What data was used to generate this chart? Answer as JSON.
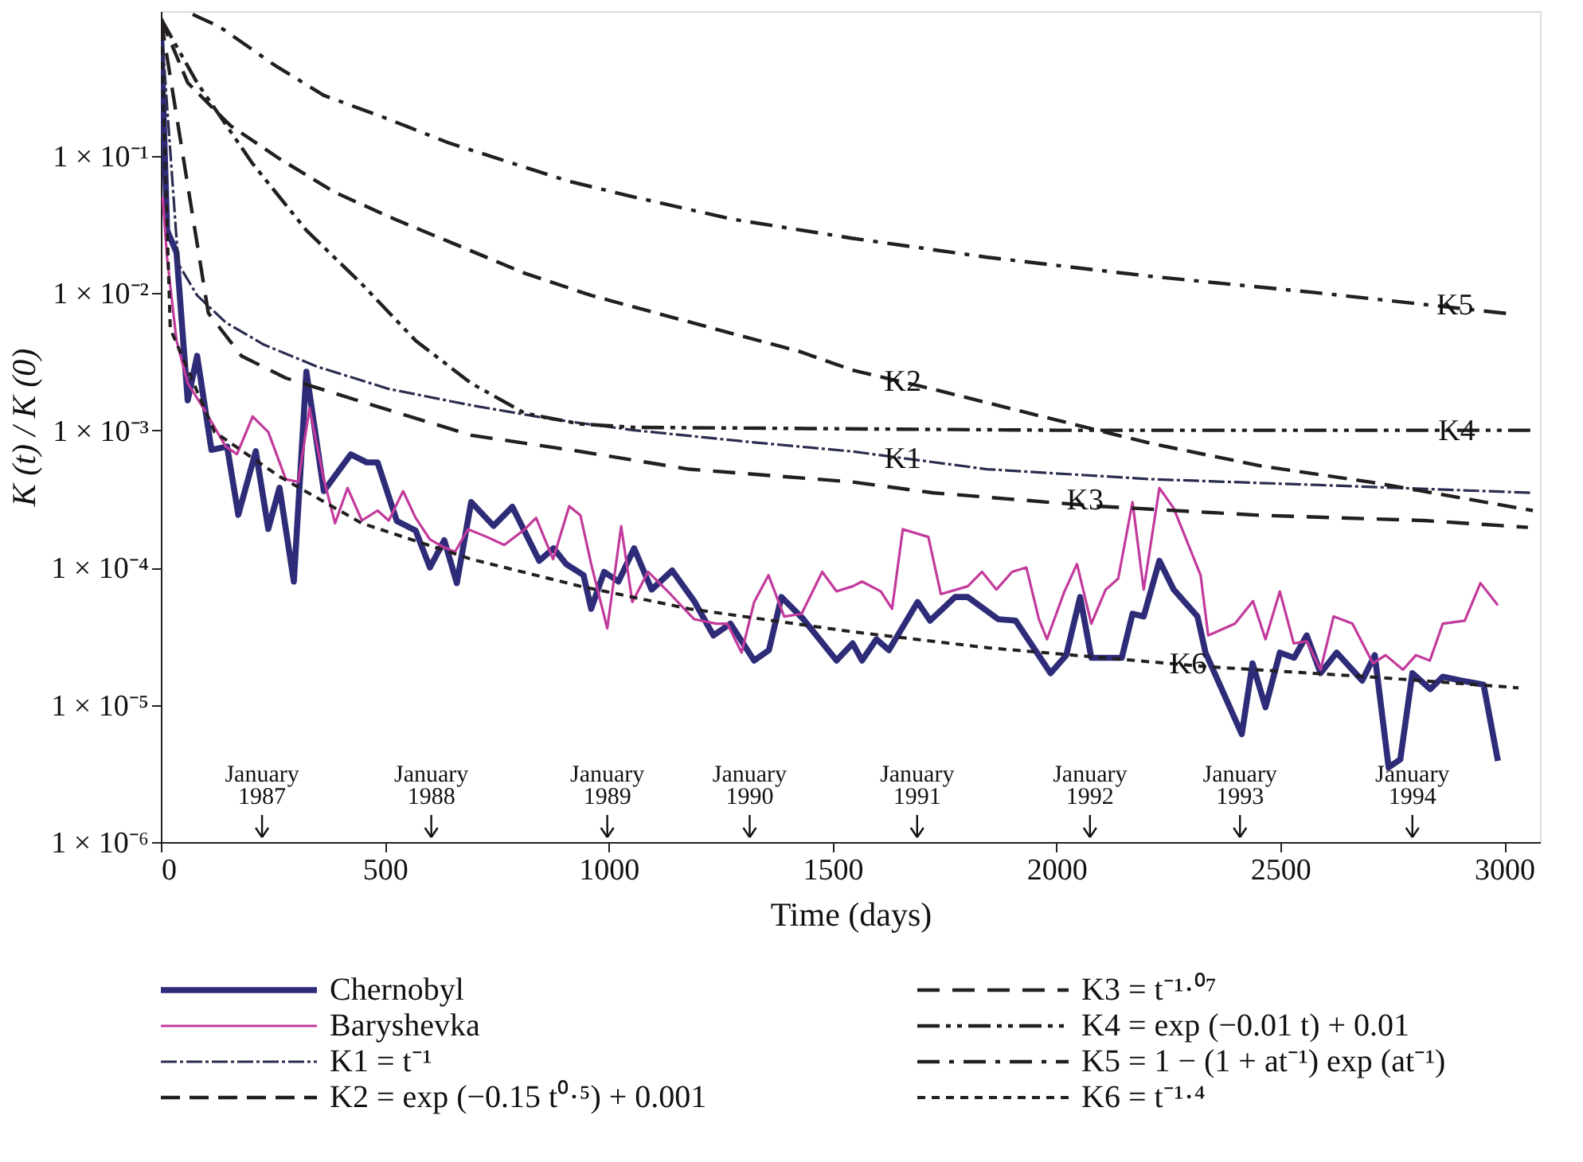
{
  "chart_data": {
    "type": "line",
    "xlabel": "Time (days)",
    "ylabel": "K (t) / K (0)",
    "xlim": [
      0,
      3080
    ],
    "xticks": [
      0,
      500,
      1000,
      1500,
      2000,
      2500,
      3000
    ],
    "ylim": [
      1e-06,
      1.13
    ],
    "log": true,
    "yticks": [
      {
        "value": 1e-06,
        "label": "1 × 10⁻⁶"
      },
      {
        "value": 1e-05,
        "label": "1 × 10⁻⁵"
      },
      {
        "value": 0.0001,
        "label": "1 × 10⁻⁴"
      },
      {
        "value": 0.001,
        "label": "1 × 10⁻³"
      },
      {
        "value": 0.01,
        "label": "1 × 10⁻²"
      },
      {
        "value": 0.1,
        "label": "1 × 10⁻¹"
      }
    ],
    "grid": false,
    "legend": "bottom",
    "series": [
      {
        "name": "Chernobyl",
        "color": "#2e2c78",
        "line_style": "solid",
        "x": [
          0,
          14,
          35,
          60,
          81,
          113,
          148,
          173,
          212,
          240,
          265,
          297,
          325,
          364,
          424,
          460,
          484,
          527,
          569,
          601,
          633,
          661,
          693,
          743,
          785,
          845,
          877,
          905,
          944,
          961,
          990,
          1022,
          1057,
          1096,
          1142,
          1191,
          1234,
          1272,
          1325,
          1358,
          1386,
          1435,
          1509,
          1545,
          1566,
          1598,
          1626,
          1690,
          1718,
          1774,
          1802,
          1870,
          1909,
          1987,
          2022,
          2053,
          2078,
          2146,
          2170,
          2195,
          2230,
          2262,
          2315,
          2333,
          2414,
          2438,
          2467,
          2499,
          2531,
          2559,
          2590,
          2626,
          2683,
          2711,
          2742,
          2768,
          2795,
          2835,
          2863,
          2905,
          2954,
          2986
        ],
        "values": [
          0.9,
          0.0286,
          0.0197,
          0.00165,
          0.00348,
          0.00072,
          0.00076,
          0.000242,
          0.000703,
          0.000191,
          0.000381,
          7.9e-05,
          0.00267,
          0.000361,
          0.000667,
          0.000583,
          0.000583,
          0.000218,
          0.000186,
          0.0001,
          0.000158,
          7.7e-05,
          0.0003,
          0.000201,
          0.000277,
          0.000112,
          0.000138,
          0.000106,
          8.8e-05,
          5e-05,
          9.3e-05,
          7.9e-05,
          0.000138,
          6.9e-05,
          9.5e-05,
          5.7e-05,
          3.2e-05,
          3.9e-05,
          2.1e-05,
          2.5e-05,
          6.1e-05,
          4.2e-05,
          2.1e-05,
          2.8e-05,
          2.1e-05,
          3e-05,
          2.5e-05,
          5.6e-05,
          4.1e-05,
          6.1e-05,
          6.1e-05,
          4.2e-05,
          4.1e-05,
          1.7e-05,
          2.3e-05,
          6.1e-05,
          2.2e-05,
          2.2e-05,
          4.6e-05,
          4.4e-05,
          0.000112,
          6.9e-05,
          4.4e-05,
          2.4e-05,
          6.1e-06,
          2e-05,
          9.6e-06,
          2.4e-05,
          2.2e-05,
          3.2e-05,
          1.7e-05,
          2.4e-05,
          1.5e-05,
          2.3e-05,
          3.5e-06,
          4e-06,
          1.7e-05,
          1.3e-05,
          1.6e-05,
          1.5e-05,
          1.4e-05,
          3.9e-06
        ]
      },
      {
        "name": "Baryshevka",
        "color": "#c23a9c",
        "line_style": "solid",
        "x": [
          4,
          14,
          35,
          60,
          95,
          145,
          170,
          205,
          240,
          279,
          307,
          332,
          364,
          389,
          417,
          449,
          484,
          509,
          541,
          569,
          601,
          633,
          657,
          686,
          728,
          767,
          813,
          838,
          876,
          912,
          937,
          961,
          997,
          1028,
          1053,
          1088,
          1138,
          1191,
          1240,
          1265,
          1297,
          1325,
          1357,
          1392,
          1431,
          1477,
          1509,
          1545,
          1566,
          1608,
          1633,
          1657,
          1714,
          1742,
          1802,
          1834,
          1866,
          1901,
          1933,
          1961,
          1979,
          2018,
          2046,
          2078,
          2110,
          2138,
          2170,
          2195,
          2230,
          2262,
          2322,
          2339,
          2399,
          2439,
          2467,
          2499,
          2530,
          2559,
          2590,
          2619,
          2661,
          2707,
          2735,
          2774,
          2803,
          2834,
          2863,
          2912,
          2947,
          2986
        ],
        "values": [
          0.05,
          0.018,
          0.0045,
          0.0022,
          0.00145,
          0.00076,
          0.00067,
          0.00126,
          0.00097,
          0.00044,
          0.00042,
          0.00145,
          0.00044,
          0.00021,
          0.00038,
          0.00022,
          0.00026,
          0.00022,
          0.00036,
          0.00023,
          0.00016,
          0.00014,
          0.00013,
          0.00019,
          0.000167,
          0.000146,
          0.00019,
          0.00023,
          0.000115,
          0.00028,
          0.00024,
          0.000106,
          3.6e-05,
          0.0002,
          5.6e-05,
          9.3e-05,
          6.4e-05,
          4.2e-05,
          3.9e-05,
          3.9e-05,
          2.4e-05,
          5.6e-05,
          8.8e-05,
          4.4e-05,
          4.6e-05,
          9.3e-05,
          6.7e-05,
          7.3e-05,
          7.9e-05,
          6.7e-05,
          5e-05,
          0.00019,
          0.000167,
          6.4e-05,
          7.3e-05,
          9.3e-05,
          6.9e-05,
          9.3e-05,
          0.0001,
          4.2e-05,
          3e-05,
          6.7e-05,
          0.000106,
          3.9e-05,
          6.9e-05,
          8.3e-05,
          0.0003,
          6.9e-05,
          0.00038,
          0.00027,
          8.8e-05,
          3.2e-05,
          3.9e-05,
          5.7e-05,
          3e-05,
          6.7e-05,
          2.8e-05,
          2.9e-05,
          1.8e-05,
          4.4e-05,
          3.9e-05,
          2e-05,
          2.3e-05,
          1.8e-05,
          2.3e-05,
          2.1e-05,
          3.9e-05,
          4.1e-05,
          7.7e-05,
          5.3e-05
        ]
      },
      {
        "name": "K1 = t⁻¹",
        "color": "#2b2d50",
        "line_style": "dashed",
        "x": [
          0,
          39,
          81,
          145,
          230,
          350,
          509,
          693,
          876,
          1057,
          1300,
          1545,
          1845,
          2212,
          2576,
          3064
        ],
        "values": [
          1.0,
          0.0163,
          0.0096,
          0.0061,
          0.0042,
          0.0029,
          0.002,
          0.00152,
          0.0012,
          0.001,
          0.00083,
          0.0007,
          0.00052,
          0.00044,
          0.0004,
          0.00035
        ]
      },
      {
        "name": "K2 = exp (−0.15 t⁰·⁵) + 0.001",
        "color": "#231f20",
        "line_style": "dashed",
        "x": [
          0,
          60,
          155,
          265,
          389,
          523,
          668,
          813,
          961,
          1106,
          1276,
          1424,
          1545,
          1725,
          1968,
          2212,
          2456,
          2700,
          2884,
          3064
        ],
        "values": [
          1.0,
          0.34,
          0.166,
          0.095,
          0.054,
          0.0344,
          0.0219,
          0.0139,
          0.0096,
          0.00715,
          0.00506,
          0.00377,
          0.00274,
          0.00199,
          0.00126,
          0.0008,
          0.00055,
          0.00042,
          0.00033,
          0.00026
        ]
      },
      {
        "name": "K3 = t⁻¹·⁰⁷",
        "color": "#231f20",
        "line_style": "dashed",
        "x": [
          0,
          106,
          180,
          279,
          474,
          693,
          937,
          1180,
          1545,
          1725,
          2089,
          2456,
          2820,
          3053
        ],
        "values": [
          1.0,
          0.00715,
          0.00348,
          0.0024,
          0.00152,
          0.00092,
          0.0007,
          0.00052,
          0.00042,
          0.00035,
          0.00028,
          0.00024,
          0.00022,
          0.000196
        ]
      },
      {
        "name": "K4 = exp (−0.01 t) + 0.01",
        "color": "#231f20",
        "line_style": "dashed",
        "x": [
          0,
          81,
          205,
          325,
          449,
          569,
          693,
          813,
          937,
          1057,
          2000,
          3064
        ],
        "values": [
          1.0,
          0.34,
          0.0875,
          0.0286,
          0.0116,
          0.0045,
          0.0022,
          0.00133,
          0.00111,
          0.00105,
          0.001,
          0.001
        ]
      },
      {
        "name": "K5 = 1 − (1 + at⁻¹) exp (at⁻¹)",
        "color": "#231f20",
        "line_style": "dashed",
        "x": [
          71,
          131,
          254,
          364,
          498,
          643,
          788,
          912,
          1057,
          1276,
          1545,
          1845,
          2212,
          2574,
          3004
        ],
        "values": [
          1.07,
          0.87,
          0.457,
          0.275,
          0.19,
          0.124,
          0.0875,
          0.065,
          0.05,
          0.0345,
          0.025,
          0.0182,
          0.0132,
          0.0101,
          0.0071
        ]
      },
      {
        "name": "K6 = t⁻¹·⁴",
        "color": "#231f20",
        "line_style": "dashed",
        "x": [
          0,
          21,
          120,
          265,
          449,
          693,
          937,
          1180,
          1545,
          1848,
          2332,
          2696,
          3032
        ],
        "values": [
          1.0,
          0.0055,
          0.00097,
          0.00046,
          0.00021,
          0.000115,
          7.3e-05,
          5e-05,
          3.4e-05,
          2.6e-05,
          1.9e-05,
          1.6e-05,
          1.33e-05
        ]
      }
    ],
    "annotations": [
      {
        "text": "K5",
        "x": 2890,
        "y": 0.0082
      },
      {
        "text": "K2",
        "x": 1657,
        "y": 0.00227
      },
      {
        "text": "K4",
        "x": 2894,
        "y": 0.001
      },
      {
        "text": "K1",
        "x": 1657,
        "y": 0.00062
      },
      {
        "text": "K3",
        "x": 2064,
        "y": 0.00031
      },
      {
        "text": "K6",
        "x": 2294,
        "y": 2e-05
      },
      {
        "text": "January\n1987",
        "x": 226
      },
      {
        "text": "January\n1988",
        "x": 604
      },
      {
        "text": "January\n1989",
        "x": 997
      },
      {
        "text": "January\n1990",
        "x": 1315
      },
      {
        "text": "January\n1991",
        "x": 1689
      },
      {
        "text": "January\n1992",
        "x": 2075
      },
      {
        "text": "January\n1993",
        "x": 2410
      },
      {
        "text": "January\n1994",
        "x": 2795
      }
    ]
  }
}
